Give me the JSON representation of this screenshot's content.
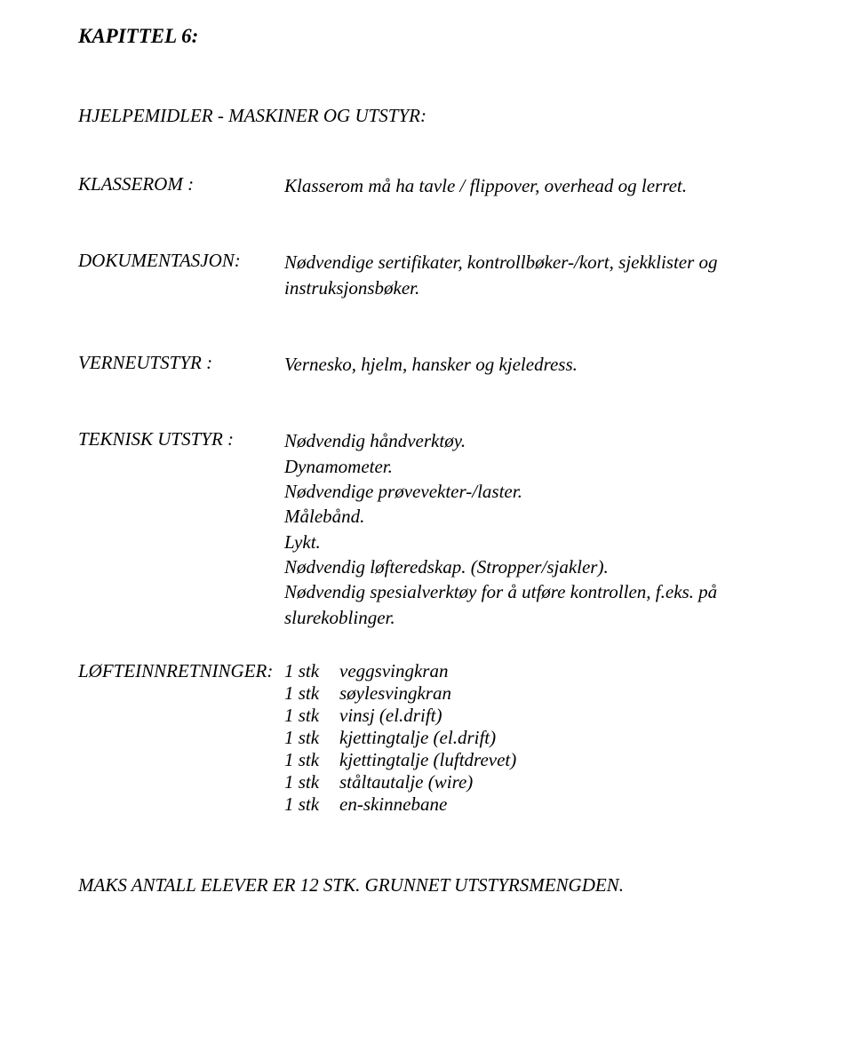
{
  "page": {
    "background_color": "#ffffff",
    "text_color": "#000000",
    "font_family": "Palatino",
    "base_fontsize_pt": 16
  },
  "chapter_title": "KAPITTEL 6:",
  "section_title": "HJELPEMIDLER - MASKINER OG UTSTYR:",
  "rows": [
    {
      "label": "KLASSEROM  :",
      "values": [
        "Klasserom må ha tavle / flippover, overhead og lerret."
      ]
    },
    {
      "label": "DOKUMENTASJON:",
      "values": [
        "Nødvendige sertifikater, kontrollbøker-/kort, sjekklister og instruksjonsbøker."
      ]
    },
    {
      "label": "VERNEUTSTYR    :",
      "values": [
        "Vernesko, hjelm, hansker og kjeledress."
      ]
    },
    {
      "label": "TEKNISK UTSTYR  :",
      "values": [
        "Nødvendig håndverktøy.",
        "Dynamometer.",
        "Nødvendige prøvevekter-/laster.",
        "Målebånd.",
        "Lykt.",
        "Nødvendig løfteredskap. (Stropper/sjakler).",
        "Nødvendig spesialverktøy for å utføre kontrollen, f.eks. på slurekoblinger."
      ]
    }
  ],
  "equipment": {
    "label": "LØFTEINNRETNINGER:",
    "items": [
      {
        "qty": "1 stk",
        "name": "veggsvingkran"
      },
      {
        "qty": "1 stk",
        "name": "søylesvingkran"
      },
      {
        "qty": "1 stk",
        "name": "vinsj (el.drift)"
      },
      {
        "qty": "1 stk",
        "name": "kjettingtalje (el.drift)"
      },
      {
        "qty": "1 stk",
        "name": "kjettingtalje (luftdrevet)"
      },
      {
        "qty": "1 stk",
        "name": "ståltautalje (wire)"
      },
      {
        "qty": "1 stk",
        "name": "en-skinnebane"
      }
    ]
  },
  "footer_note": "MAKS ANTALL ELEVER ER 12 STK. GRUNNET UTSTYRSMENGDEN."
}
